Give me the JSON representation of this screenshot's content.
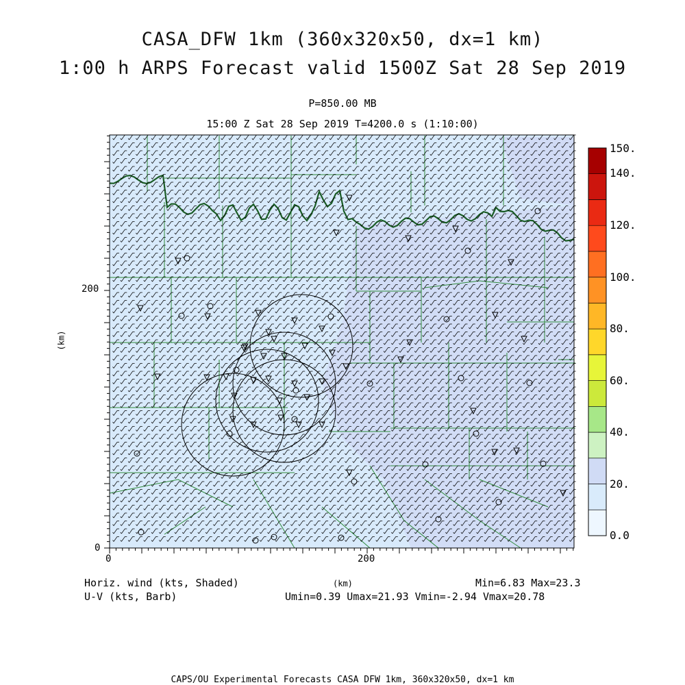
{
  "title": {
    "line1": "CASA_DFW 1km (360x320x50, dx=1 km)",
    "line2": "1:00 h ARPS Forecast valid 1500Z Sat 28 Sep 2019"
  },
  "subtitle": {
    "level": "P=850.00 MB",
    "time": "15:00 Z Sat 28 Sep 2019   T=4200.0 s (1:10:00)"
  },
  "axes": {
    "x_ticks": [
      "0",
      "200"
    ],
    "y_ticks": [
      "0",
      "200"
    ],
    "y_label": "(km)",
    "x_label": "(km)"
  },
  "colorbar": {
    "labels": [
      "0.0",
      "20.",
      "40.",
      "60.",
      "80.",
      "100.",
      "120.",
      "140.",
      "150."
    ],
    "colors": [
      "#eef7ff",
      "#d9ebfb",
      "#d0dbf5",
      "#cdf2c2",
      "#a7e788",
      "#cce93b",
      "#e7f539",
      "#ffd72a",
      "#ffb726",
      "#ff9224",
      "#ff6f21",
      "#ff4a1c",
      "#ea2a13",
      "#cc150d",
      "#a60000"
    ]
  },
  "legend": {
    "left1": "Horiz. wind (kts, Shaded)",
    "left2": "U-V (kts, Barb)",
    "right1": "Min=6.83 Max=23.3",
    "right2": "Umin=0.39 Umax=21.93 Vmin=-2.94 Vmax=20.78"
  },
  "footer": "CAPS/OU Experimental Forecasts  CASA DFW 1km, 360x320x50, dx=1 km",
  "map_colors": {
    "field_light": "#d8eafb",
    "field_mid": "#d1dbf5",
    "county_lines": "#2f8a3a",
    "state_border": "#1a5c25",
    "radar_rings": "#000000"
  }
}
